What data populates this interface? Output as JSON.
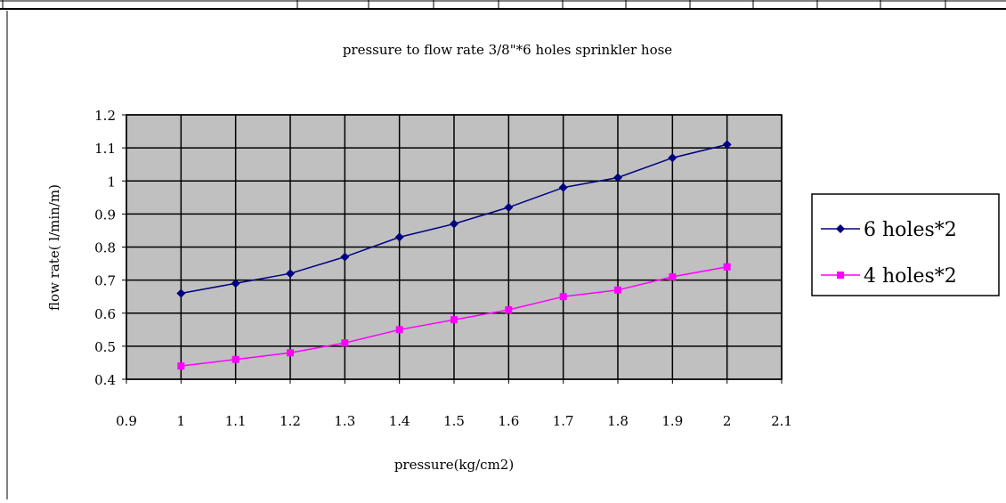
{
  "chart_data": {
    "type": "line",
    "title": "pressure to flow rate 3/8\"*6 holes sprinkler hose",
    "xlabel": "pressure(kg/cm2)",
    "ylabel": "flow rate( l/min/m)",
    "xlim": [
      0.9,
      2.1
    ],
    "ylim": [
      0.4,
      1.2
    ],
    "x_ticks": [
      "0.9",
      "1",
      "1.1",
      "1.2",
      "1.3",
      "1.4",
      "1.5",
      "1.6",
      "1.7",
      "1.8",
      "1.9",
      "2",
      "2.1"
    ],
    "y_ticks": [
      "0.4",
      "0.5",
      "0.6",
      "0.7",
      "0.8",
      "0.9",
      "1",
      "1.1",
      "1.2"
    ],
    "grid": true,
    "legend_position": "right",
    "plot_background": "#c0c0c0",
    "series": [
      {
        "name": "6 holes*2",
        "color": "#000080",
        "marker": "diamond",
        "x": [
          1,
          1.1,
          1.2,
          1.3,
          1.4,
          1.5,
          1.6,
          1.7,
          1.8,
          1.9,
          2
        ],
        "y": [
          0.66,
          0.69,
          0.72,
          0.77,
          0.83,
          0.87,
          0.92,
          0.98,
          1.01,
          1.07,
          1.11
        ]
      },
      {
        "name": "4 holes*2",
        "color": "#ff00ff",
        "marker": "square",
        "x": [
          1,
          1.1,
          1.2,
          1.3,
          1.4,
          1.5,
          1.6,
          1.7,
          1.8,
          1.9,
          2
        ],
        "y": [
          0.44,
          0.46,
          0.48,
          0.51,
          0.55,
          0.58,
          0.61,
          0.65,
          0.67,
          0.71,
          0.74
        ]
      }
    ]
  }
}
